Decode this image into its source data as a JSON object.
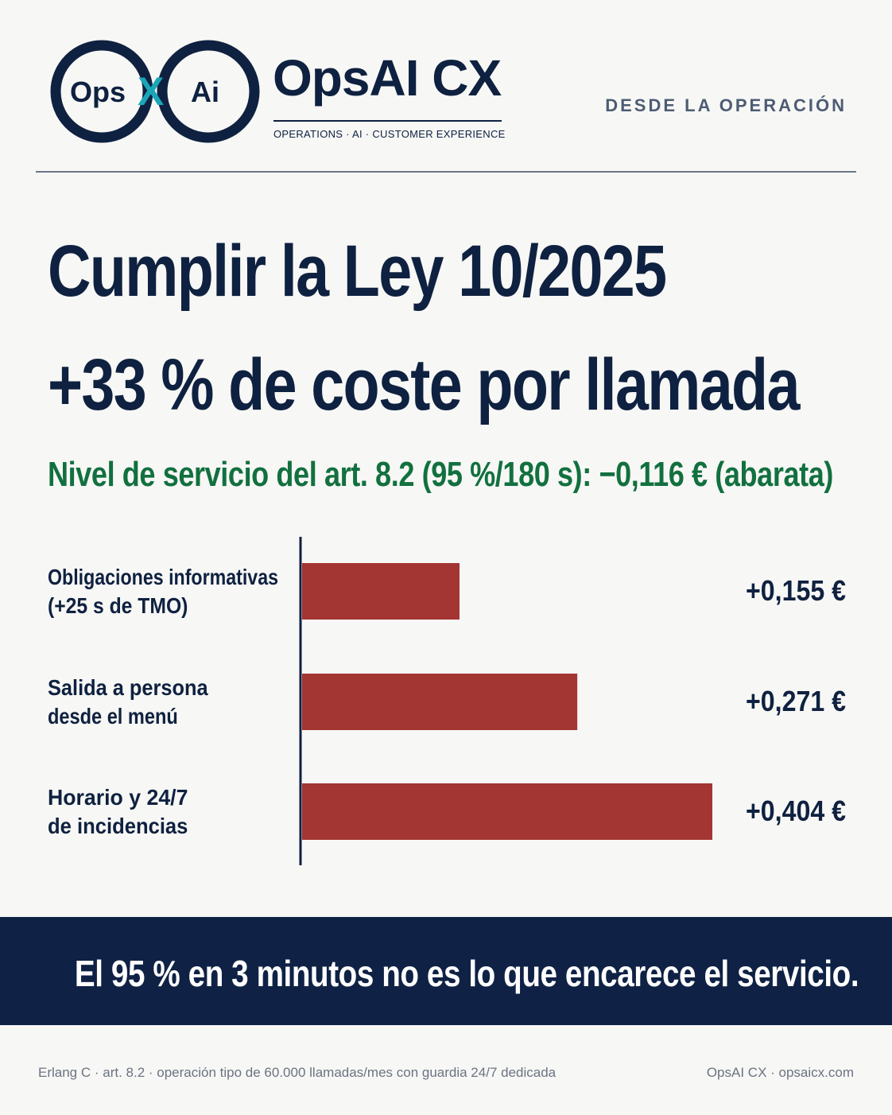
{
  "brand": {
    "name": "OpsAI CX",
    "tagline": "OPERATIONS · AI · CUSTOMER EXPERIENCE",
    "logo_text_left": "Ops",
    "logo_text_mid": "X",
    "logo_text_right": "Ai",
    "colors": {
      "navy": "#0f2140",
      "teal": "#1aa6b7"
    }
  },
  "kicker": "DESDE LA OPERACIÓN",
  "headline": {
    "line1": "Cumplir la Ley 10/2025",
    "line2": "+33 % de coste por llamada"
  },
  "subhead": "Nivel de servicio del art. 8.2 (95 %/180 s):  −0,116 €  (abarata)",
  "chart_data": {
    "type": "bar",
    "orientation": "horizontal",
    "categories": [
      [
        "Obligaciones informativas",
        "(+25 s de TMO)"
      ],
      [
        "Salida a persona",
        "desde el menú"
      ],
      [
        "Horario y 24/7",
        "de incidencias"
      ]
    ],
    "values": [
      0.155,
      0.271,
      0.404
    ],
    "value_labels": [
      "+0,155 €",
      "+0,271 €",
      "+0,404 €"
    ],
    "bar_color": "#a33533",
    "xlim": [
      0,
      0.44
    ],
    "grid": false
  },
  "banner": "El 95 % en 3 minutos no es lo que encarece el servicio.",
  "footer": {
    "source": "Erlang C · art. 8.2 · operación tipo de 60.000 llamadas/mes con guardia 24/7 dedicada",
    "credit": "OpsAI CX · opsaicx.com"
  }
}
